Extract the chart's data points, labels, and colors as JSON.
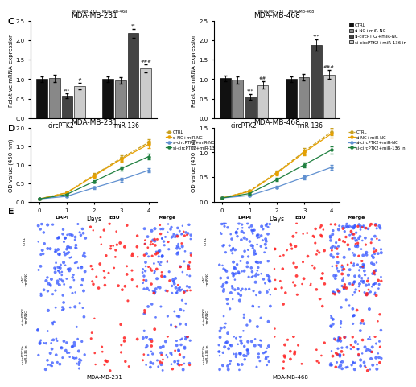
{
  "panel_C_left": {
    "title": "MDA-MB-231",
    "xlabel_groups": [
      "circPTK2",
      "miR-136"
    ],
    "ylabel": "Relative mRNA expression",
    "ylim": [
      0,
      2.5
    ],
    "yticks": [
      0.0,
      0.5,
      1.0,
      1.5,
      2.0,
      2.5
    ],
    "bar_values": {
      "circPTK2": [
        1.0,
        1.02,
        0.57,
        0.82
      ],
      "miR136": [
        1.0,
        0.97,
        2.18,
        1.27
      ]
    },
    "bar_errors": {
      "circPTK2": [
        0.08,
        0.1,
        0.06,
        0.09
      ],
      "miR136": [
        0.07,
        0.08,
        0.12,
        0.1
      ]
    },
    "annotations": {
      "circPTK2": [
        "",
        "",
        "***",
        "#"
      ],
      "miR136": [
        "",
        "",
        "**",
        "###"
      ]
    }
  },
  "panel_C_right": {
    "title": "MDA-MB-468",
    "xlabel_groups": [
      "circPTK2",
      "miR-136"
    ],
    "ylabel": "Relative mRNA expression",
    "ylim": [
      0,
      2.5
    ],
    "yticks": [
      0.0,
      0.5,
      1.0,
      1.5,
      2.0,
      2.5
    ],
    "bar_values": {
      "circPTK2": [
        1.02,
        0.98,
        0.55,
        0.85
      ],
      "miR136": [
        1.0,
        1.05,
        1.88,
        1.12
      ]
    },
    "bar_errors": {
      "circPTK2": [
        0.07,
        0.09,
        0.07,
        0.1
      ],
      "miR136": [
        0.08,
        0.09,
        0.15,
        0.12
      ]
    },
    "annotations": {
      "circPTK2": [
        "",
        "",
        "***",
        "##"
      ],
      "miR136": [
        "",
        "",
        "***",
        "###"
      ]
    }
  },
  "panel_D_left": {
    "title": "MDA-MB-231",
    "xlabel": "Days",
    "ylabel": "OD value (450 nm)",
    "ylim": [
      0,
      2.0
    ],
    "yticks": [
      0.0,
      0.5,
      1.0,
      1.5,
      2.0
    ],
    "days": [
      0,
      1,
      2,
      3,
      4
    ],
    "lines": {
      "CTRL": [
        0.08,
        0.25,
        0.72,
        1.18,
        1.6
      ],
      "si-NC+miR-NC": [
        0.08,
        0.24,
        0.7,
        1.15,
        1.55
      ],
      "si-circPTK2+miR-NC": [
        0.08,
        0.15,
        0.38,
        0.6,
        0.85
      ],
      "si-circPTK2+miR-136 in": [
        0.08,
        0.2,
        0.55,
        0.9,
        1.22
      ]
    },
    "line_errors": {
      "CTRL": [
        0.01,
        0.03,
        0.05,
        0.07,
        0.09
      ],
      "si-NC+miR-NC": [
        0.01,
        0.03,
        0.05,
        0.07,
        0.09
      ],
      "si-circPTK2+miR-NC": [
        0.01,
        0.02,
        0.04,
        0.05,
        0.06
      ],
      "si-circPTK2+miR-136 in": [
        0.01,
        0.02,
        0.04,
        0.06,
        0.08
      ]
    }
  },
  "panel_D_right": {
    "title": "MDA-MB-468",
    "xlabel": "Days",
    "ylabel": "OD value (450 nm)",
    "ylim": [
      0,
      1.5
    ],
    "yticks": [
      0.0,
      0.5,
      1.0,
      1.5
    ],
    "days": [
      0,
      1,
      2,
      3,
      4
    ],
    "lines": {
      "CTRL": [
        0.08,
        0.22,
        0.6,
        1.02,
        1.42
      ],
      "si-NC+miR-NC": [
        0.08,
        0.21,
        0.58,
        1.0,
        1.38
      ],
      "si-circPTK2+miR-NC": [
        0.08,
        0.13,
        0.3,
        0.5,
        0.7
      ],
      "si-circPTK2+miR-136 in": [
        0.08,
        0.17,
        0.45,
        0.75,
        1.05
      ]
    },
    "line_errors": {
      "CTRL": [
        0.01,
        0.02,
        0.04,
        0.06,
        0.08
      ],
      "si-NC+miR-NC": [
        0.01,
        0.02,
        0.04,
        0.06,
        0.08
      ],
      "si-circPTK2+miR-NC": [
        0.01,
        0.01,
        0.03,
        0.04,
        0.05
      ],
      "si-circPTK2+miR-136 in": [
        0.01,
        0.02,
        0.03,
        0.05,
        0.07
      ]
    }
  },
  "legend_labels": [
    "CTRL",
    "si-NC+miR-NC",
    "si-circPTK2+miR-NC",
    "si-circPTK2+miR-136 in"
  ],
  "bar_colors": [
    "#111111",
    "#888888",
    "#444444",
    "#cccccc"
  ],
  "line_colors_D": [
    "#c8a020",
    "#e8a000",
    "#6090d0",
    "#208040"
  ],
  "line_styles_D": [
    "--",
    "-",
    "-",
    "-"
  ],
  "line_markers_D": [
    "o",
    "o",
    "o",
    "o"
  ],
  "panel_labels": [
    "C",
    "D",
    "E"
  ],
  "bg_color": "#ffffff",
  "microscopy_row_labels": [
    "CTRL",
    "siNC\n+miRNC",
    "sicircPTK2\n+miRNC",
    "sicircPTK2+\nmiR-136 in"
  ],
  "microscopy_col_labels": [
    "DAPI",
    "EdU",
    "Merge"
  ],
  "microscopy_bottom_left": "MDA-MB-231",
  "microscopy_bottom_right": "MDA-MB-468",
  "top_strip_label": "MDA-MB-231    MDA-MB-468"
}
